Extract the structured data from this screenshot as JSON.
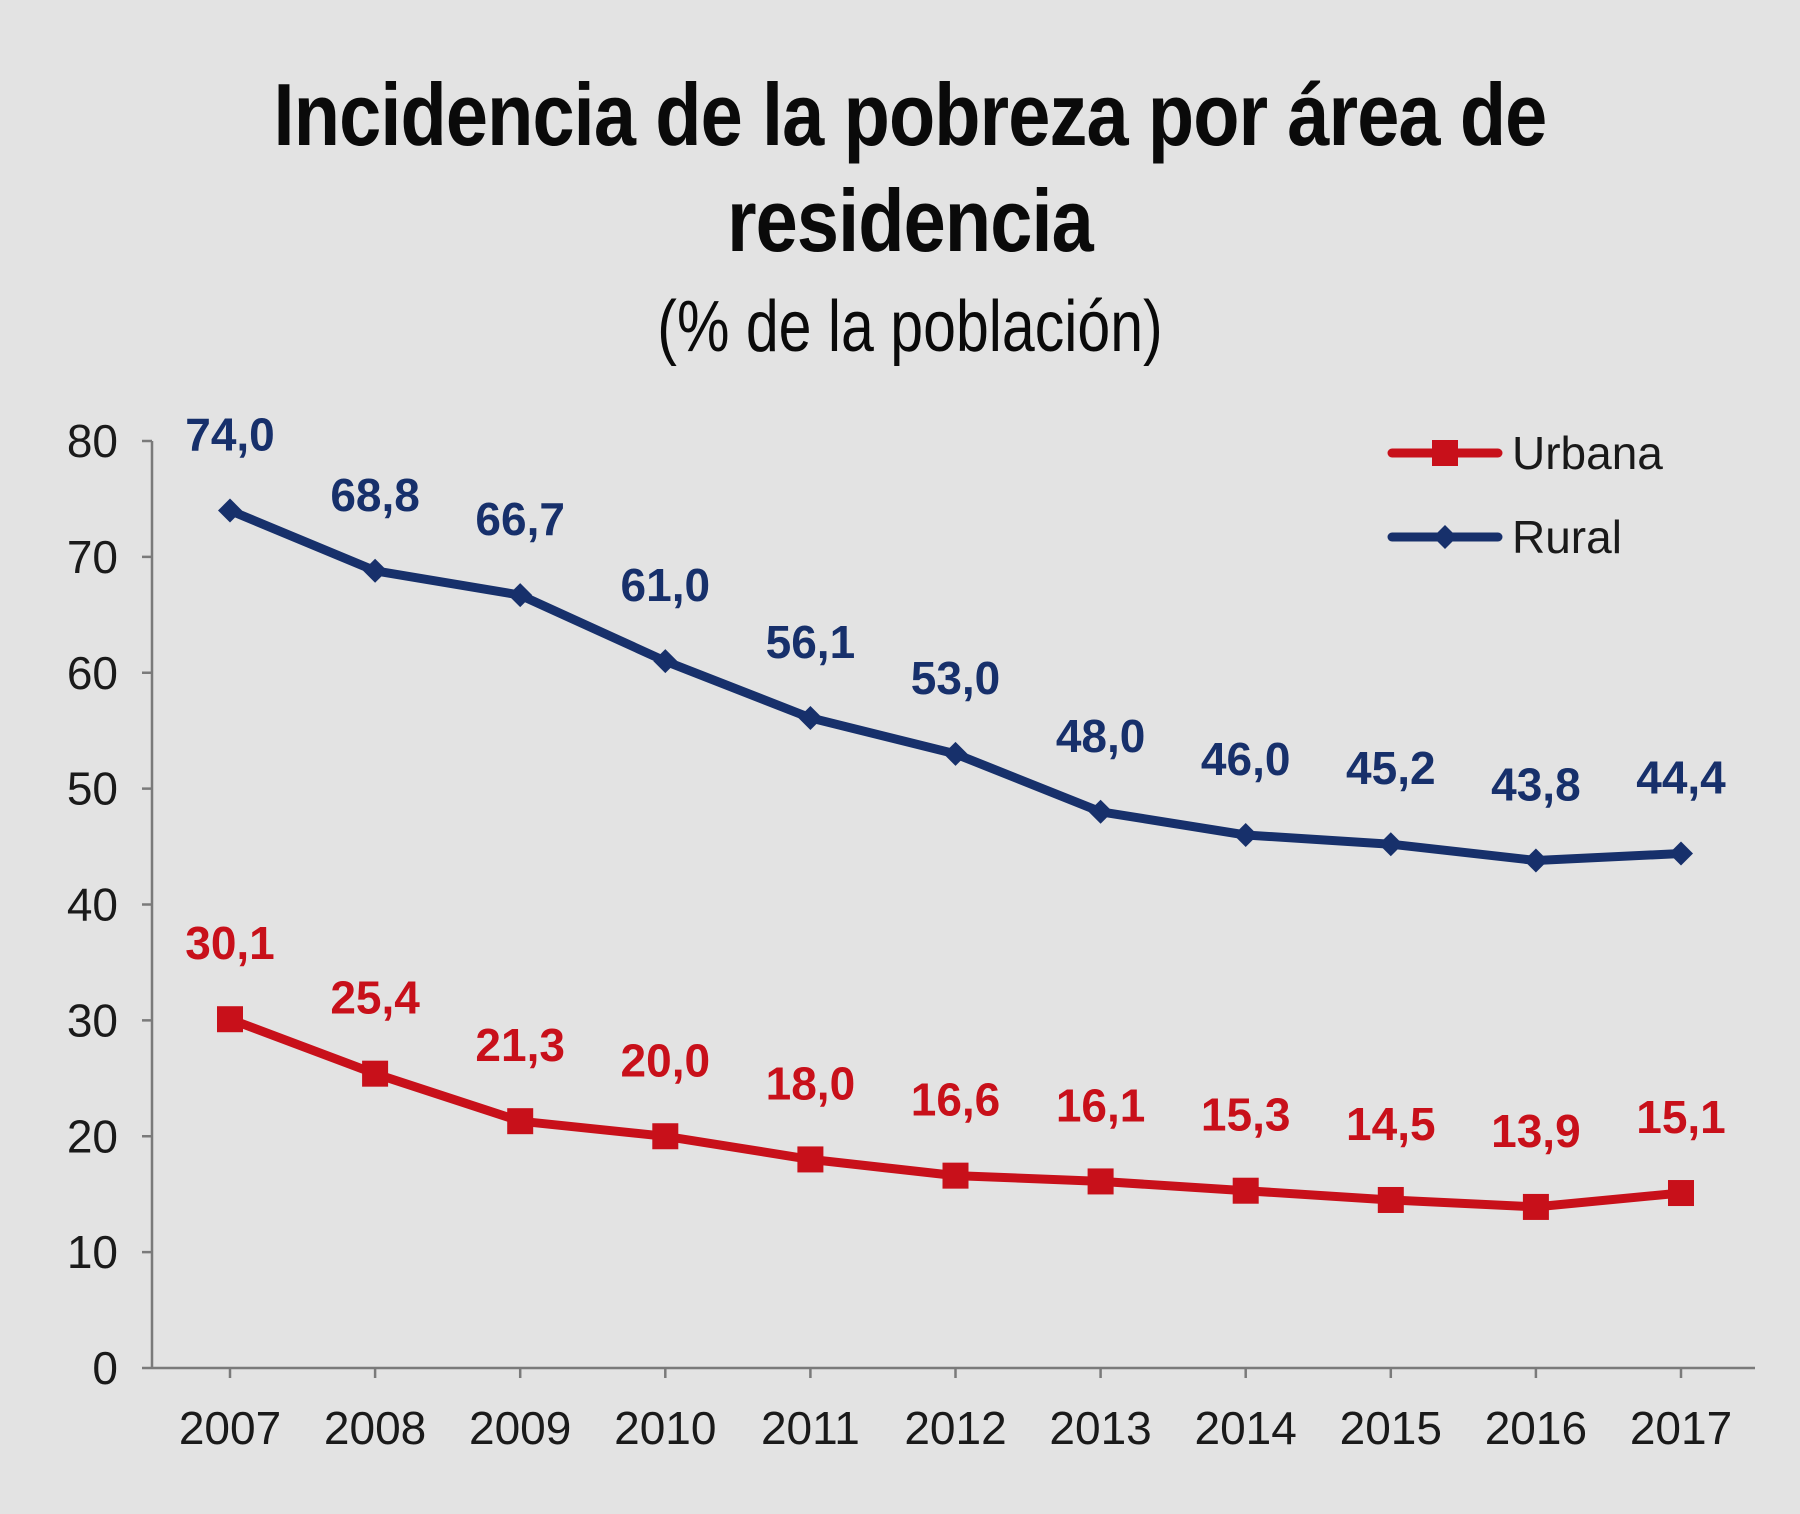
{
  "chart_data": {
    "type": "line",
    "title": "Incidencia de la pobreza por área de residencia",
    "title_line1": "Incidencia de la pobreza por área de",
    "title_line2": "residencia",
    "subtitle": "(% de la población)",
    "categories": [
      "2007",
      "2008",
      "2009",
      "2010",
      "2011",
      "2012",
      "2013",
      "2014",
      "2015",
      "2016",
      "2017"
    ],
    "series": [
      {
        "name": "Urbana",
        "color": "#c8101a",
        "marker": "square",
        "values": [
          30.1,
          25.4,
          21.3,
          20.0,
          18.0,
          16.6,
          16.1,
          15.3,
          14.5,
          13.9,
          15.1
        ],
        "labels": [
          "30,1",
          "25,4",
          "21,3",
          "20,0",
          "18,0",
          "16,6",
          "16,1",
          "15,3",
          "14,5",
          "13,9",
          "15,1"
        ]
      },
      {
        "name": "Rural",
        "color": "#17306b",
        "marker": "diamond",
        "values": [
          74.0,
          68.8,
          66.7,
          61.0,
          56.1,
          53.0,
          48.0,
          46.0,
          45.2,
          43.8,
          44.4
        ],
        "labels": [
          "74,0",
          "68,8",
          "66,7",
          "61,0",
          "56,1",
          "53,0",
          "48,0",
          "46,0",
          "45,2",
          "43,8",
          "44,4"
        ]
      }
    ],
    "yticks": [
      "0",
      "10",
      "20",
      "30",
      "40",
      "50",
      "60",
      "70",
      "80"
    ],
    "ylim": [
      0,
      80
    ],
    "xlabel": "",
    "ylabel": "",
    "grid": false,
    "legend_position": "top-right"
  }
}
